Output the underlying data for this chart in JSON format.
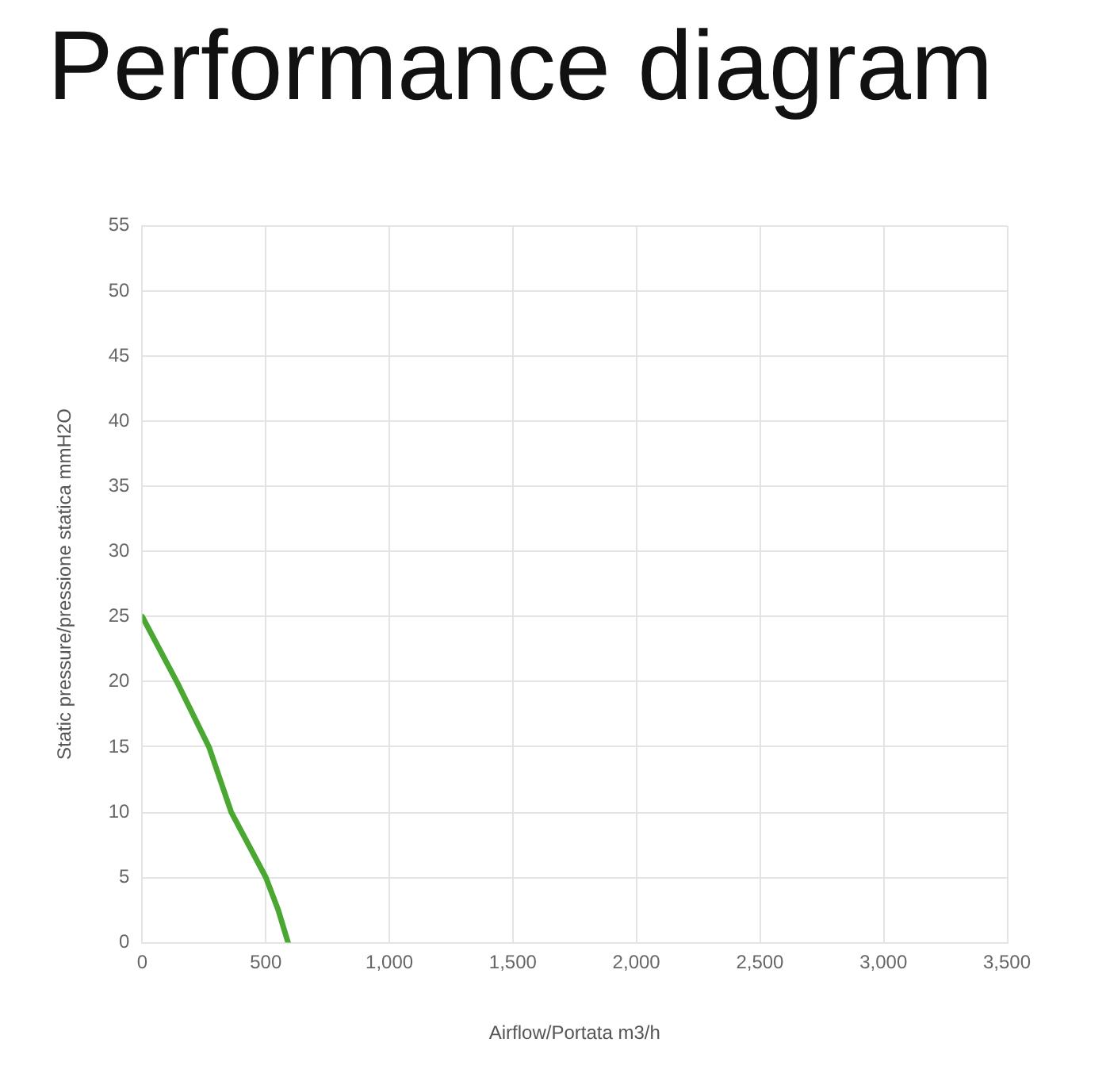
{
  "chart_data": {
    "type": "line",
    "title": "Performance diagram",
    "xlabel": "Airflow/Portata m3/h",
    "ylabel": "Static pressure/pressione statica mmH2O",
    "x": [
      0,
      140,
      270,
      360,
      500,
      550,
      590
    ],
    "series": [
      {
        "color": "#4aa832",
        "values": [
          25,
          20,
          15,
          10,
          5,
          2.5,
          0
        ]
      }
    ],
    "xlim": [
      0,
      3500
    ],
    "xticks": [
      0,
      500,
      {
        "value": 1000,
        "label": "1,000"
      },
      {
        "value": 1500,
        "label": "1,500"
      },
      {
        "value": 2000,
        "label": "2,000"
      },
      {
        "value": 2500,
        "label": "2,500"
      },
      {
        "value": 3000,
        "label": "3,000"
      },
      {
        "value": 3500,
        "label": "3,500"
      }
    ],
    "ylim": [
      0,
      55
    ],
    "yticks": [
      0,
      5,
      10,
      15,
      20,
      25,
      30,
      35,
      40,
      45,
      50,
      55
    ],
    "grid": true
  }
}
